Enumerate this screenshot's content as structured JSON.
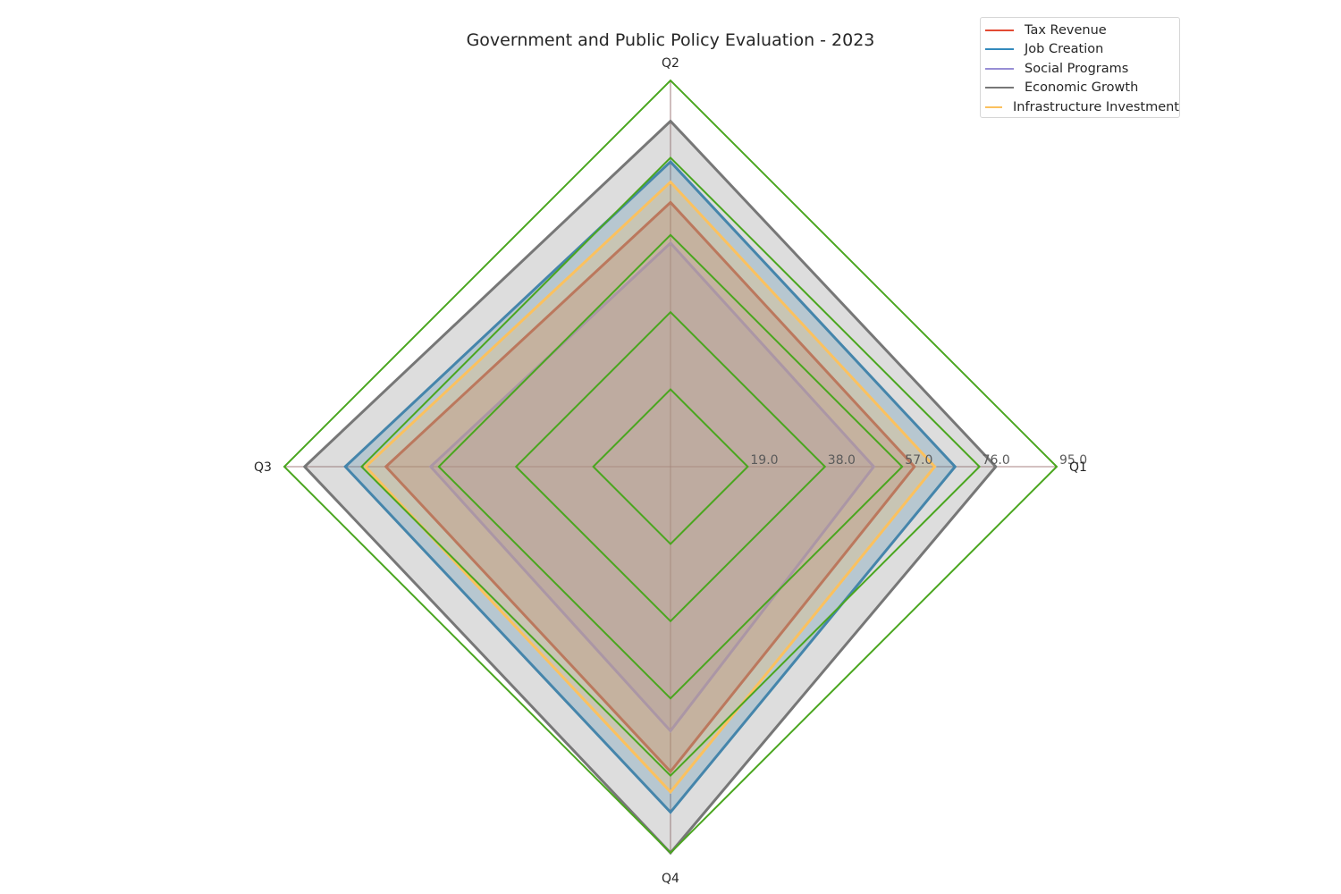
{
  "chart_data": {
    "type": "radar",
    "title": "Government and Public Policy Evaluation - 2023",
    "categories": [
      "Q1",
      "Q2",
      "Q3",
      "Q4"
    ],
    "rlim": [
      0,
      95
    ],
    "r_ticks": [
      19,
      38,
      57,
      76,
      95
    ],
    "r_tick_labels": [
      "19.0",
      "38.0",
      "57.0",
      "76.0",
      "95.0"
    ],
    "grid": true,
    "legend_position": "top-right",
    "series": [
      {
        "name": "Tax Revenue",
        "color": "#e24a33",
        "values": [
          60,
          65,
          70,
          75
        ]
      },
      {
        "name": "Job Creation",
        "color": "#348abd",
        "values": [
          70,
          75,
          80,
          85
        ]
      },
      {
        "name": "Social Programs",
        "color": "#988ed5",
        "values": [
          50,
          55,
          59,
          65
        ]
      },
      {
        "name": "Economic Growth",
        "color": "#777777",
        "values": [
          80,
          85,
          90,
          95
        ]
      },
      {
        "name": "Infrastructure Investment",
        "color": "#fbc15e",
        "values": [
          65,
          70,
          75,
          80
        ]
      }
    ],
    "grid_color": "#4aa61f",
    "spoke_color": "#8b5a5a"
  }
}
